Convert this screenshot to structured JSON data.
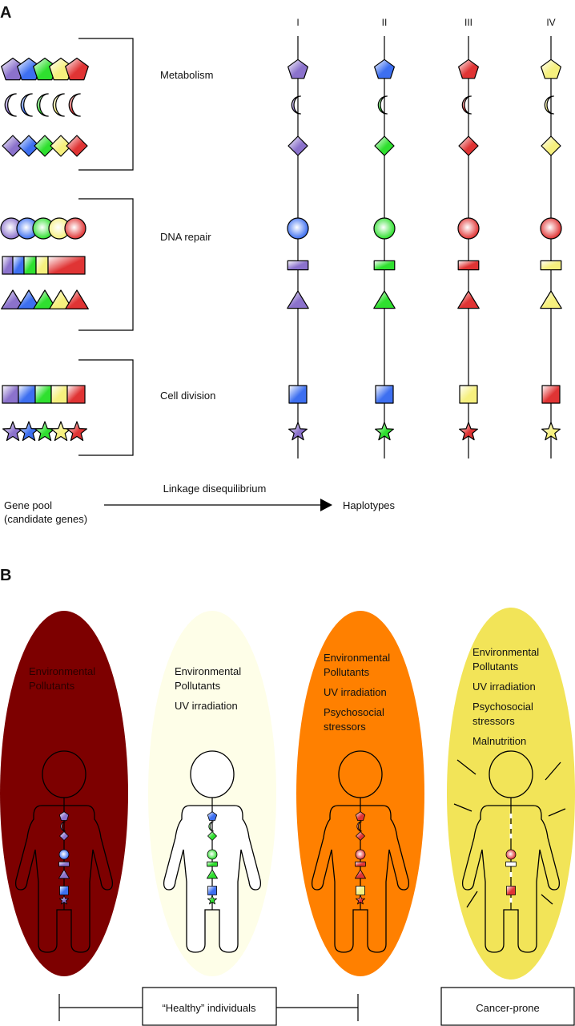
{
  "panel_a": {
    "letter": "A",
    "palette": {
      "purple": "#8b72cc",
      "blue": "#3d6ff0",
      "green": "#2fe02f",
      "yellow": "#f6f07e",
      "red": "#e03434",
      "white": "#ffffff"
    },
    "gene_groups": [
      {
        "label": "Metabolism",
        "rows": [
          {
            "shape": "pentagon"
          },
          {
            "shape": "crescent"
          },
          {
            "shape": "diamond"
          }
        ]
      },
      {
        "label": "DNA repair",
        "rows": [
          {
            "shape": "circle"
          },
          {
            "shape": "rect"
          },
          {
            "shape": "triangle"
          }
        ]
      },
      {
        "label": "Cell division",
        "rows": [
          {
            "shape": "square"
          },
          {
            "shape": "star"
          }
        ]
      }
    ],
    "pool_colors": [
      "purple",
      "blue",
      "green",
      "yellow",
      "red"
    ],
    "shape_order": [
      "pentagon",
      "crescent",
      "diamond",
      "circle",
      "rect",
      "triangle",
      "square",
      "star"
    ],
    "haplotypes": [
      {
        "label": "I",
        "genes": [
          "purple",
          "purple",
          "purple",
          "blue",
          "purple",
          "purple",
          "blue",
          "purple"
        ]
      },
      {
        "label": "II",
        "genes": [
          "blue",
          "green",
          "green",
          "green",
          "green",
          "green",
          "blue",
          "green"
        ]
      },
      {
        "label": "III",
        "genes": [
          "red",
          "red",
          "red",
          "red",
          "red",
          "red",
          "yellow",
          "red"
        ]
      },
      {
        "label": "IV",
        "genes": [
          "yellow",
          "yellow",
          "yellow",
          "red",
          "yellow",
          "yellow",
          "red",
          "yellow"
        ]
      }
    ],
    "gene_pool_label": [
      "Gene pool",
      "(candidate genes)"
    ],
    "arrow_label": "Linkage disequilibrium",
    "haplotypes_label": "Haplotypes"
  },
  "panel_b": {
    "letter": "B",
    "individuals": [
      {
        "fill": "#7d0000",
        "factors": [
          [
            "Environmental",
            "Pollutants"
          ]
        ],
        "markers": [
          "purple",
          "purple",
          "purple",
          "blue",
          "purple",
          "purple",
          "blue",
          "purple"
        ]
      },
      {
        "fill": "#fefee8",
        "factors": [
          [
            "Environmental",
            "Pollutants"
          ],
          [
            "UV irradiation"
          ]
        ],
        "markers": [
          "blue",
          "green",
          "green",
          "green",
          "green",
          "green",
          "blue",
          "green"
        ]
      },
      {
        "fill": "#ff8000",
        "factors": [
          [
            "Environmental",
            "Pollutants"
          ],
          [
            "UV irradiation"
          ],
          [
            "Psychosocial",
            "stressors"
          ]
        ],
        "markers": [
          "red",
          "red",
          "red",
          "red",
          "red",
          "red",
          "yellow",
          "red"
        ]
      },
      {
        "fill": "#f2e458",
        "factors": [
          [
            "Environmental",
            "Pollutants"
          ],
          [
            "UV irradiation"
          ],
          [
            "Psychosocial",
            "stressors"
          ],
          [
            "Malnutrition"
          ]
        ],
        "markers": [
          null,
          null,
          null,
          "red",
          "white",
          null,
          "red",
          null
        ]
      }
    ],
    "healthy_label": "“Healthy” individuals",
    "cancer_label": "Cancer-prone"
  }
}
